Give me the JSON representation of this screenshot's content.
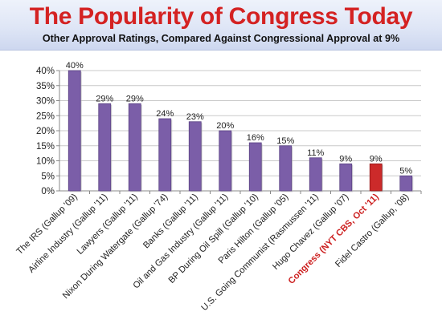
{
  "title": "The Popularity of Congress Today",
  "subtitle": "Other Approval Ratings, Compared Against Congressional Approval at 9%",
  "colors": {
    "title": "#d42222",
    "bar_default": "#7b5ea8",
    "bar_highlight": "#cc2a2a",
    "highlight_label": "#cc1f1f"
  },
  "chart_data": {
    "type": "bar",
    "categories": [
      "The IRS (Gallup '09)",
      "Airline Industry (Gallup '11)",
      "Lawyers (Gallup '11)",
      "Nixon During Watergate (Gallup '74)",
      "Banks (Gallup '11)",
      "Oil and Gas Industry (Gallup '11)",
      "BP During  Oil Spill (Gallup '10)",
      "Paris Hilton (Gallup '05)",
      "U.S. Going Communist (Rasmussen '11)",
      "Hugo Chavez (Gallup '07)",
      "Congress (NYT CBS, Oct '11)",
      "Fidel Castro (Gallup, '08)"
    ],
    "values": [
      40,
      29,
      29,
      24,
      23,
      20,
      16,
      15,
      11,
      9,
      9,
      5
    ],
    "data_labels": [
      "40%",
      "29%",
      "29%",
      "24%",
      "23%",
      "20%",
      "16%",
      "15%",
      "11%",
      "9%",
      "9%",
      "5%"
    ],
    "highlight_index": 10,
    "ylim": [
      0,
      40
    ],
    "yticks": [
      0,
      5,
      10,
      15,
      20,
      25,
      30,
      35,
      40
    ],
    "ytick_labels": [
      "0%",
      "5%",
      "10%",
      "15%",
      "20%",
      "25%",
      "30%",
      "35%",
      "40%"
    ],
    "grid": true,
    "legend": "none"
  }
}
